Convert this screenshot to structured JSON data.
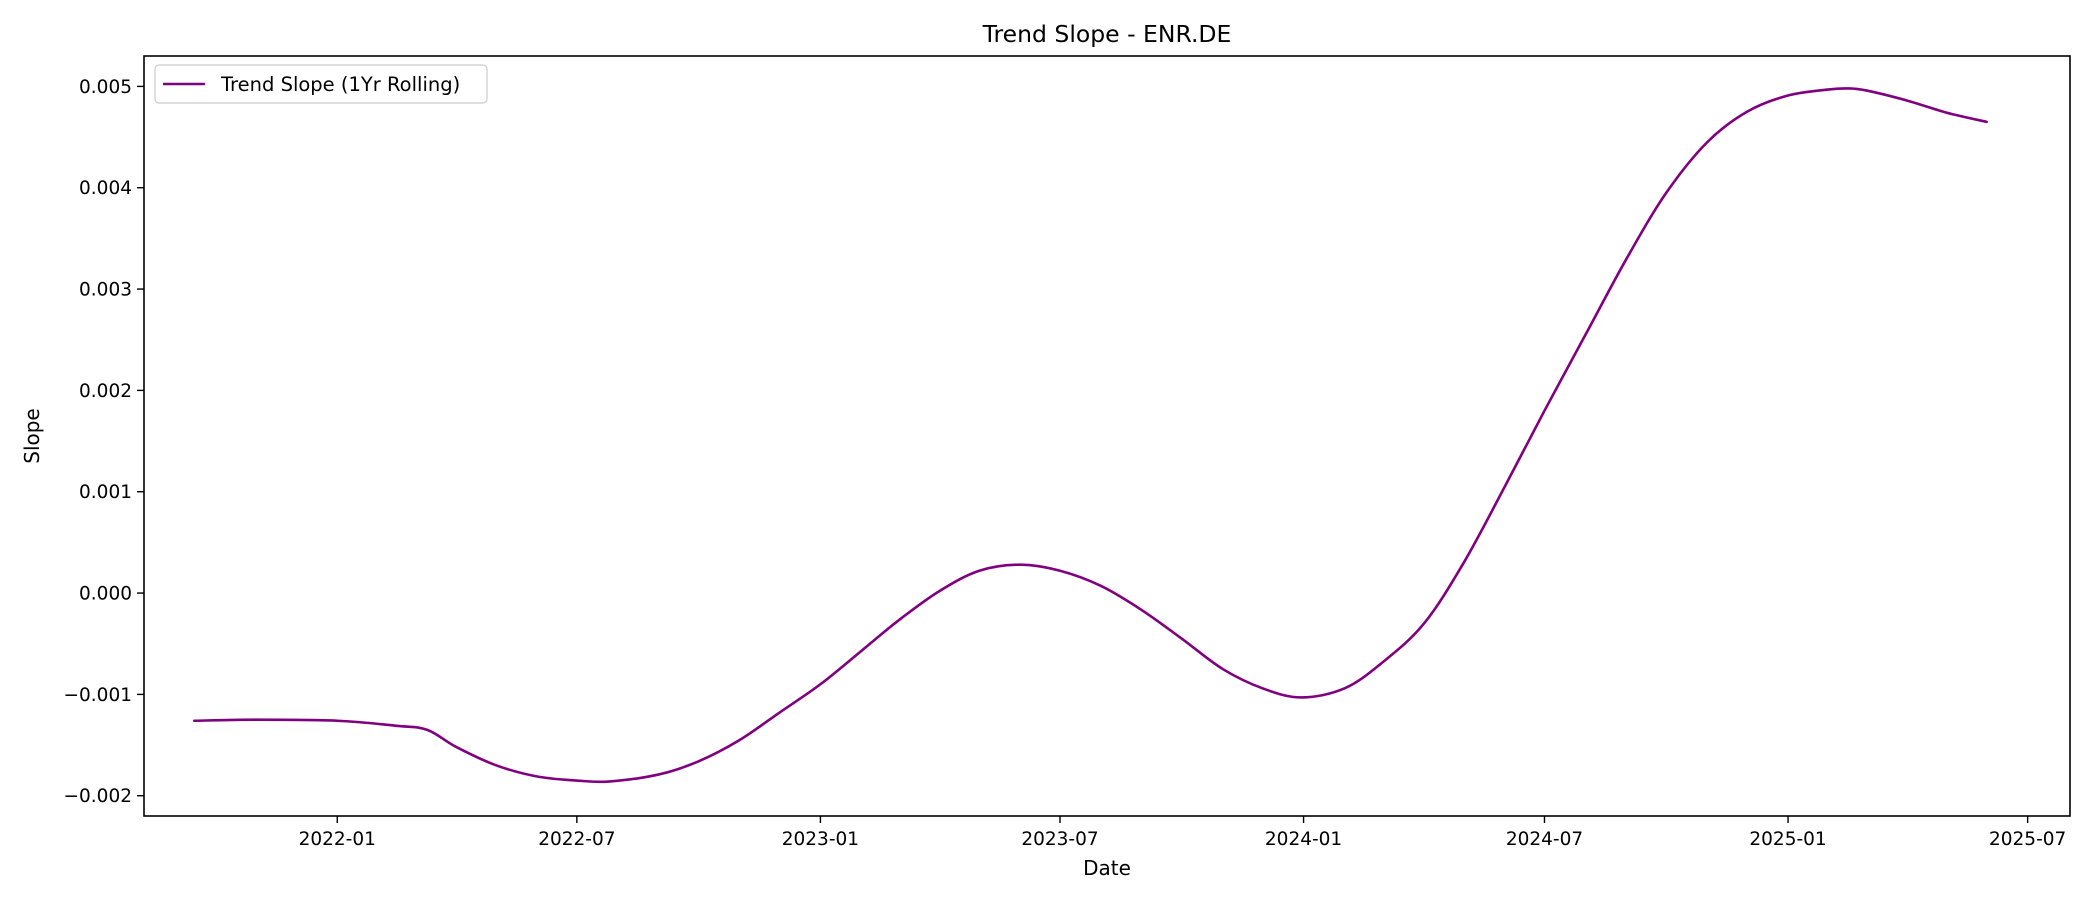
{
  "chart_data": {
    "type": "line",
    "title": "Trend Slope - ENR.DE",
    "xlabel": "Date",
    "ylabel": "Slope",
    "xlim": [
      "2021-08-08",
      "2025-08-02"
    ],
    "ylim": [
      -0.0022,
      0.0053
    ],
    "grid": false,
    "legend": {
      "position": "top-left",
      "entries": [
        "Trend Slope (1Yr Rolling)"
      ]
    },
    "x_ticks": [
      "2022-01",
      "2022-07",
      "2023-01",
      "2023-07",
      "2024-01",
      "2024-07",
      "2025-01",
      "2025-07"
    ],
    "y_ticks": [
      "−0.002",
      "−0.001",
      "0.000",
      "0.001",
      "0.002",
      "0.003",
      "0.004",
      "0.005"
    ],
    "series": [
      {
        "name": "Trend Slope (1Yr Rolling)",
        "color": "#800080",
        "points": [
          {
            "x": "2021-09-15",
            "y": -0.00126
          },
          {
            "x": "2021-11-01",
            "y": -0.00125
          },
          {
            "x": "2022-01-01",
            "y": -0.00126
          },
          {
            "x": "2022-02-15",
            "y": -0.00131
          },
          {
            "x": "2022-03-10",
            "y": -0.00135
          },
          {
            "x": "2022-04-01",
            "y": -0.00152
          },
          {
            "x": "2022-05-01",
            "y": -0.0017
          },
          {
            "x": "2022-06-01",
            "y": -0.00181
          },
          {
            "x": "2022-07-01",
            "y": -0.00185
          },
          {
            "x": "2022-07-25",
            "y": -0.00186
          },
          {
            "x": "2022-09-01",
            "y": -0.00179
          },
          {
            "x": "2022-10-01",
            "y": -0.00166
          },
          {
            "x": "2022-11-01",
            "y": -0.00145
          },
          {
            "x": "2022-12-01",
            "y": -0.00118
          },
          {
            "x": "2023-01-01",
            "y": -0.0009
          },
          {
            "x": "2023-02-01",
            "y": -0.00057
          },
          {
            "x": "2023-03-01",
            "y": -0.00027
          },
          {
            "x": "2023-04-01",
            "y": 2e-05
          },
          {
            "x": "2023-05-01",
            "y": 0.00022
          },
          {
            "x": "2023-06-01",
            "y": 0.00028
          },
          {
            "x": "2023-07-01",
            "y": 0.00022
          },
          {
            "x": "2023-08-01",
            "y": 7e-05
          },
          {
            "x": "2023-09-01",
            "y": -0.00017
          },
          {
            "x": "2023-10-01",
            "y": -0.00045
          },
          {
            "x": "2023-11-01",
            "y": -0.00075
          },
          {
            "x": "2023-12-01",
            "y": -0.00094
          },
          {
            "x": "2023-12-30",
            "y": -0.00103
          },
          {
            "x": "2024-02-01",
            "y": -0.00094
          },
          {
            "x": "2024-03-01",
            "y": -0.00068
          },
          {
            "x": "2024-04-01",
            "y": -0.0003
          },
          {
            "x": "2024-05-01",
            "y": 0.0003
          },
          {
            "x": "2024-06-01",
            "y": 0.00105
          },
          {
            "x": "2024-07-01",
            "y": 0.0018
          },
          {
            "x": "2024-08-01",
            "y": 0.00255
          },
          {
            "x": "2024-09-01",
            "y": 0.0033
          },
          {
            "x": "2024-10-01",
            "y": 0.00395
          },
          {
            "x": "2024-11-01",
            "y": 0.00445
          },
          {
            "x": "2024-12-01",
            "y": 0.00475
          },
          {
            "x": "2025-01-01",
            "y": 0.00491
          },
          {
            "x": "2025-02-01",
            "y": 0.00497
          },
          {
            "x": "2025-02-15",
            "y": 0.00498
          },
          {
            "x": "2025-03-01",
            "y": 0.00496
          },
          {
            "x": "2025-04-01",
            "y": 0.00486
          },
          {
            "x": "2025-05-01",
            "y": 0.00474
          },
          {
            "x": "2025-05-31",
            "y": 0.00465
          }
        ]
      }
    ]
  }
}
